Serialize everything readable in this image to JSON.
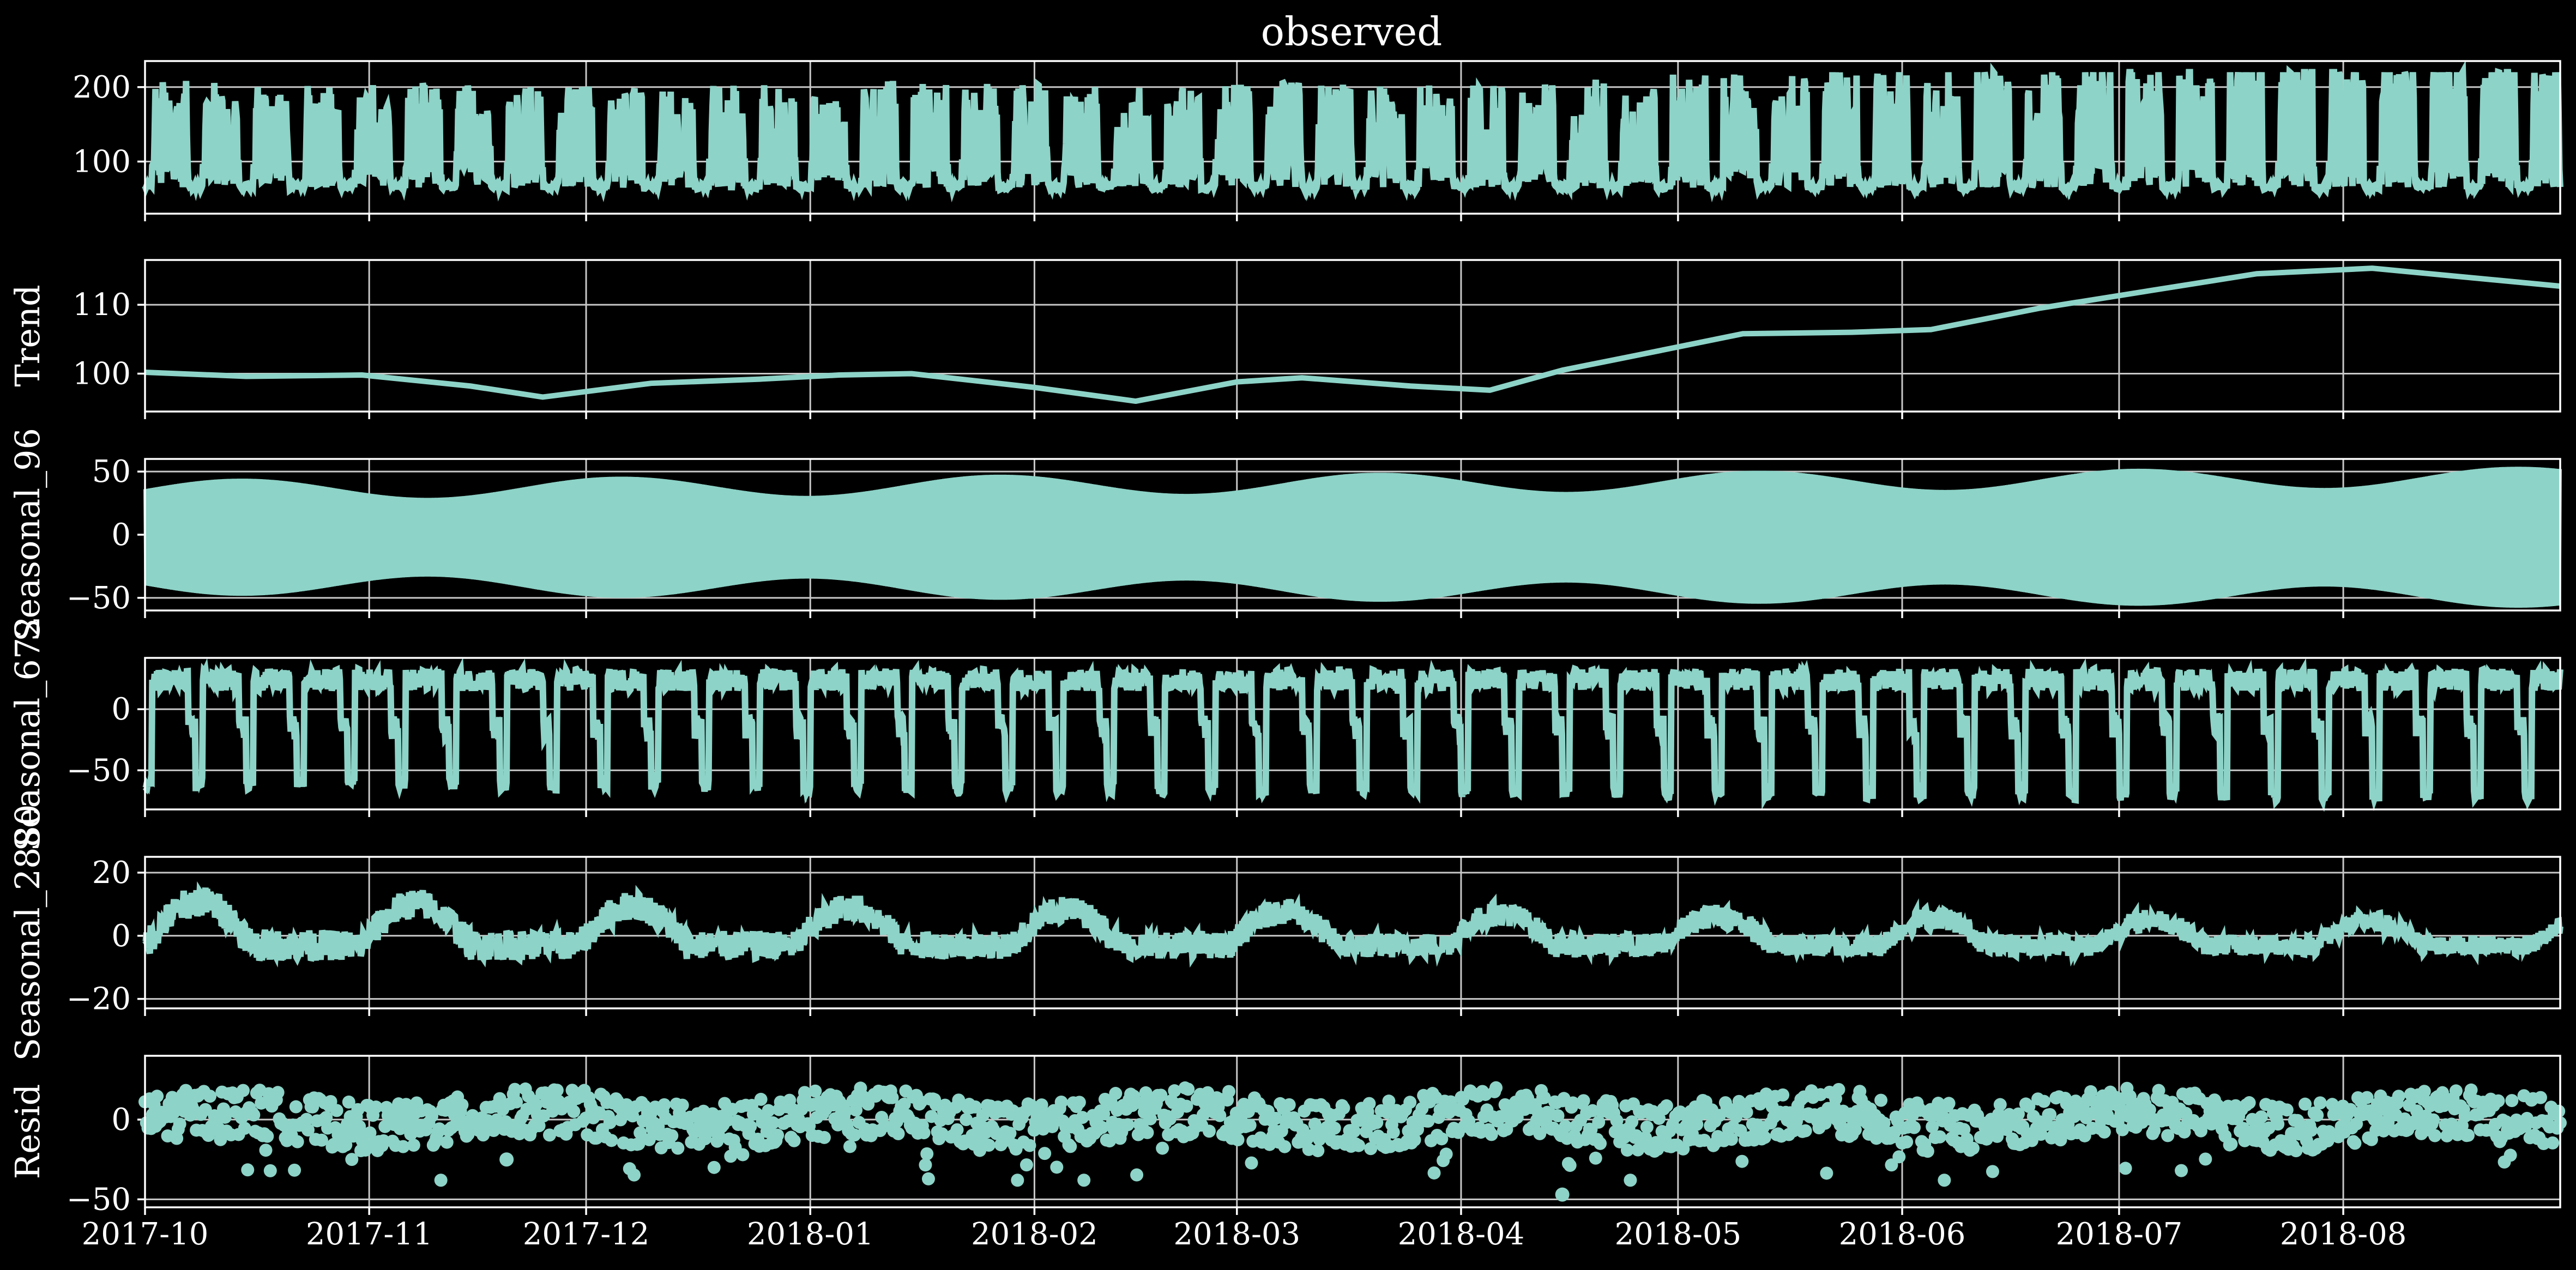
{
  "chart_data": [
    {
      "panel": "observed",
      "type": "line",
      "title": "observed",
      "ylabel": "",
      "ylim": [
        30,
        235
      ],
      "yticks": [
        100,
        200
      ],
      "ytick_labels": [
        "100",
        "200"
      ],
      "pattern": "weekly_daily_load",
      "approx_range": [
        45,
        222
      ],
      "color": "#8dd3c7"
    },
    {
      "panel": "trend",
      "type": "line",
      "title": "",
      "ylabel": "Trend",
      "ylim": [
        94.5,
        116.5
      ],
      "yticks": [
        100,
        110
      ],
      "ytick_labels": [
        "100",
        "110"
      ],
      "x": [
        "2017-10-01",
        "2017-10-15",
        "2017-10-31",
        "2017-11-15",
        "2017-11-25",
        "2017-12-10",
        "2017-12-25",
        "2018-01-05",
        "2018-01-15",
        "2018-02-01",
        "2018-02-15",
        "2018-03-01",
        "2018-03-10",
        "2018-03-25",
        "2018-04-05",
        "2018-04-15",
        "2018-04-25",
        "2018-05-10",
        "2018-05-25",
        "2018-06-05",
        "2018-06-20",
        "2018-07-05",
        "2018-07-20",
        "2018-08-05",
        "2018-08-31"
      ],
      "values": [
        100.2,
        99.6,
        99.8,
        98.2,
        96.6,
        98.6,
        99.2,
        99.8,
        100.0,
        98.0,
        96.0,
        98.8,
        99.4,
        98.2,
        97.6,
        100.5,
        102.6,
        105.8,
        106.0,
        106.4,
        109.5,
        112.0,
        114.5,
        115.3,
        112.7
      ],
      "color": "#8dd3c7"
    },
    {
      "panel": "seasonal_96",
      "type": "line",
      "title": "",
      "ylabel": "Seasonal_96",
      "ylim": [
        -60,
        60
      ],
      "yticks": [
        -50,
        0,
        50
      ],
      "ytick_labels": [
        "−50",
        "0",
        "50"
      ],
      "pattern": "daily_cycle_envelope",
      "approx_range": [
        -55,
        55
      ],
      "color": "#8dd3c7"
    },
    {
      "panel": "seasonal_672",
      "type": "line",
      "title": "",
      "ylabel": "Seasonal_672",
      "ylim": [
        -82,
        42
      ],
      "yticks": [
        -50,
        0
      ],
      "ytick_labels": [
        "−50",
        "0"
      ],
      "pattern": "weekly_cycle_with_weekend_dips",
      "approx_range": [
        -77,
        35
      ],
      "color": "#8dd3c7"
    },
    {
      "panel": "seasonal_2880",
      "type": "line",
      "title": "",
      "ylabel": "Seasonal_2880",
      "ylim": [
        -23,
        25
      ],
      "yticks": [
        -20,
        0,
        20
      ],
      "ytick_labels": [
        "−20",
        "0",
        "20"
      ],
      "pattern": "monthly_cycle_damped",
      "approx_range": [
        -21,
        23
      ],
      "color": "#8dd3c7"
    },
    {
      "panel": "resid",
      "type": "scatter",
      "title": "",
      "ylabel": "Resid",
      "ylim": [
        -55,
        40
      ],
      "yticks": [
        -50,
        0
      ],
      "ytick_labels": [
        "−50",
        "0"
      ],
      "pattern": "noise_with_outliers",
      "approx_range": [
        -47,
        35
      ],
      "color": "#8dd3c7"
    }
  ],
  "x_axis": {
    "range": [
      "2017-10-01",
      "2018-08-31"
    ],
    "ticks": [
      "2017-10-01",
      "2017-11-01",
      "2017-12-01",
      "2018-01-01",
      "2018-02-01",
      "2018-03-01",
      "2018-04-01",
      "2018-05-01",
      "2018-06-01",
      "2018-07-01",
      "2018-08-01"
    ],
    "tick_labels": [
      "2017-10",
      "2017-11",
      "2017-12",
      "2018-01",
      "2018-02",
      "2018-03",
      "2018-04",
      "2018-05",
      "2018-06",
      "2018-07",
      "2018-08"
    ],
    "grid": true
  },
  "style": {
    "background": "#000000",
    "foreground": "#ffffff",
    "series_color": "#8dd3c7",
    "grid": true
  }
}
